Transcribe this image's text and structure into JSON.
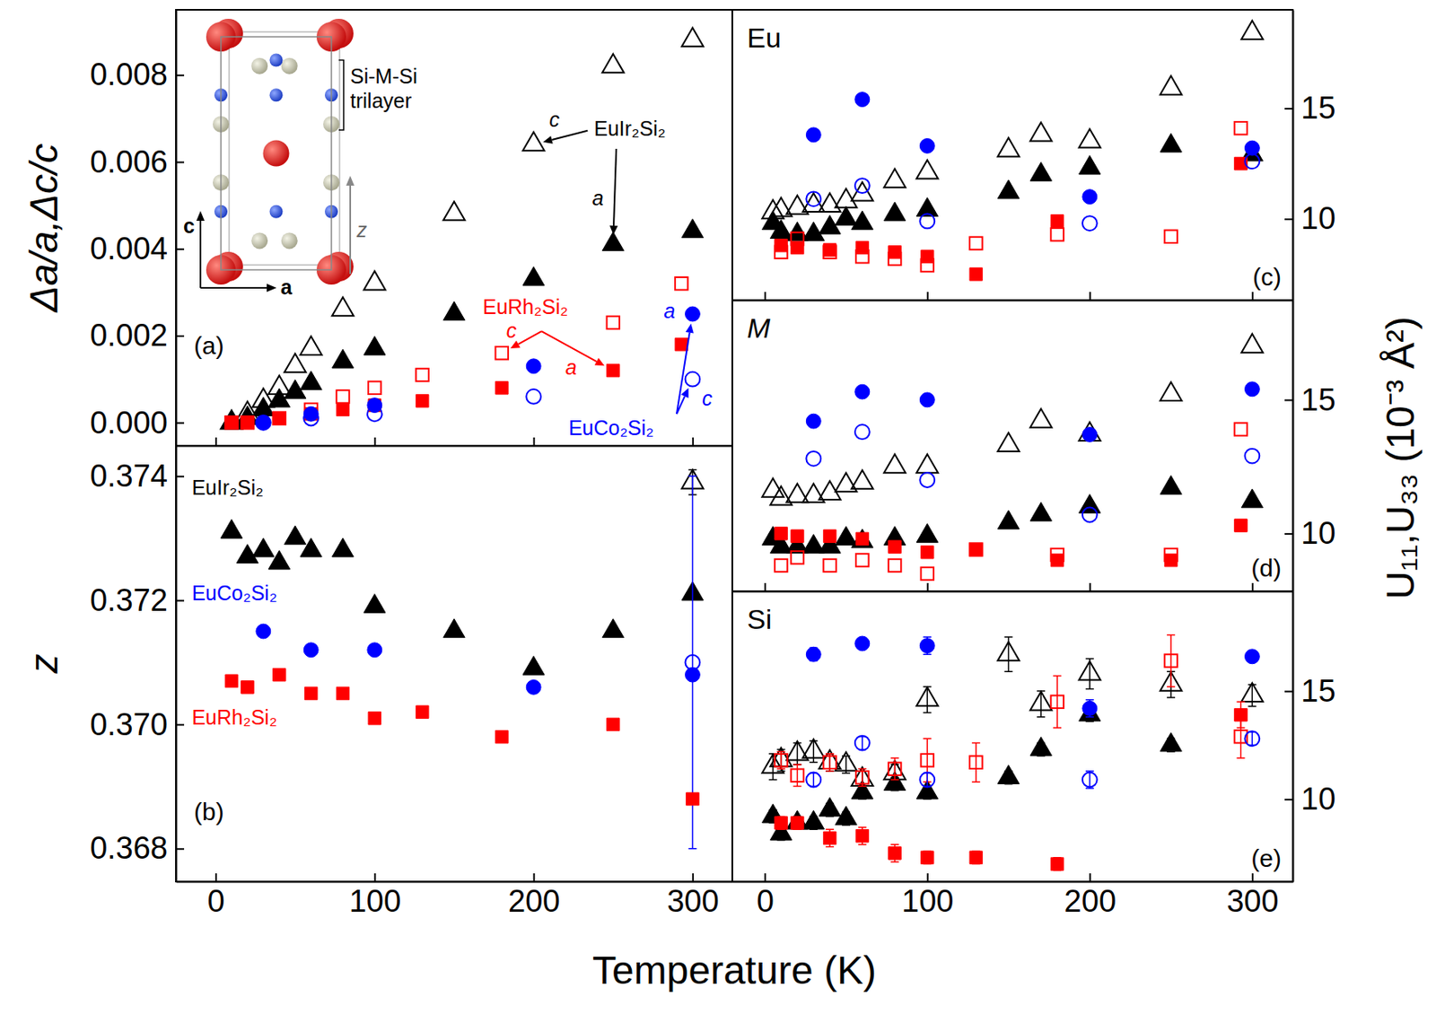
{
  "chart_data": [
    {
      "type": "scatter",
      "panel": "(a)",
      "y_label": "Δa/a,Δc/c",
      "xlim": [
        -25,
        325
      ],
      "xticks": [
        0,
        100,
        200,
        300
      ],
      "ylim": [
        -0.00053,
        0.0095
      ],
      "yticks": [
        {
          "value": 0,
          "label": "0.000"
        },
        0.002,
        0.004,
        0.006,
        0.008
      ],
      "tick_labels": "y",
      "series": [
        {
          "color": "#000000",
          "marker": "triangle-open",
          "x": [
            10,
            20,
            30,
            40,
            50,
            60,
            80,
            100,
            150,
            200,
            250,
            300
          ],
          "values": [
            0,
            0.0002,
            0.0005,
            0.0008,
            0.0013,
            0.0017,
            0.0026,
            0.0032,
            0.0048,
            0.0064,
            0.0082,
            0.0088
          ]
        },
        {
          "color": "#000000",
          "marker": "triangle",
          "x": [
            10,
            20,
            30,
            40,
            50,
            60,
            80,
            100,
            150,
            200,
            250,
            300
          ],
          "values": [
            0,
            0.0001,
            0.0003,
            0.0005,
            0.0007,
            0.0009,
            0.0014,
            0.0017,
            0.0025,
            0.0033,
            0.0041,
            0.0044
          ]
        },
        {
          "color": "#ff0000",
          "marker": "square-open",
          "x": [
            10,
            20,
            40,
            60,
            80,
            100,
            130,
            180,
            250,
            293
          ],
          "values": [
            0,
            0,
            0.0001,
            0.0003,
            0.0006,
            0.0008,
            0.0011,
            0.0016,
            0.0023,
            0.0032
          ]
        },
        {
          "color": "#ff0000",
          "marker": "square",
          "x": [
            10,
            20,
            40,
            60,
            80,
            100,
            130,
            180,
            250,
            293
          ],
          "values": [
            0,
            0,
            0.0001,
            0.0002,
            0.0003,
            0.0004,
            0.0005,
            0.0008,
            0.0012,
            0.0018
          ]
        },
        {
          "color": "#0000ff",
          "marker": "circle",
          "x": [
            30,
            60,
            100,
            200,
            300
          ],
          "values": [
            0,
            0.0002,
            0.0004,
            0.0013,
            0.0025
          ]
        },
        {
          "color": "#0000ff",
          "marker": "circle-open",
          "x": [
            30,
            60,
            100,
            200,
            300
          ],
          "values": [
            0,
            0.0001,
            0.0002,
            0.0006,
            0.001
          ]
        }
      ],
      "annotations": [
        {
          "text": "EuIr₂Si₂",
          "color": "#000000"
        },
        {
          "text": "c",
          "color": "#000000"
        },
        {
          "text": "a",
          "color": "#000000"
        },
        {
          "text": "EuRh₂Si₂",
          "color": "#ff0000"
        },
        {
          "text": "c",
          "color": "#ff0000"
        },
        {
          "text": "a",
          "color": "#ff0000"
        },
        {
          "text": "EuCo₂Si₂",
          "color": "#0000ff"
        },
        {
          "text": "a",
          "color": "#0000ff"
        },
        {
          "text": "c",
          "color": "#0000ff"
        }
      ],
      "inset": {
        "labels": [
          "Si-M-Si",
          "trilayer",
          "c",
          "a",
          "z"
        ]
      }
    },
    {
      "type": "scatter",
      "panel": "(b)",
      "y_label": "z",
      "x_label": "Temperature (K)",
      "xlim": [
        -25,
        325
      ],
      "xticks": [
        0,
        100,
        200,
        300
      ],
      "ylim": [
        0.36747,
        0.37449
      ],
      "yticks": [
        0.368,
        {
          "value": 0.37,
          "label": "0.370"
        },
        0.372,
        0.374
      ],
      "series": [
        {
          "color": "#000000",
          "marker": "triangle",
          "x": [
            10,
            20,
            30,
            40,
            50,
            60,
            80,
            100,
            150,
            200,
            250,
            300
          ],
          "values": [
            0.3731,
            0.3727,
            0.3728,
            0.3726,
            0.373,
            0.3728,
            0.3728,
            0.3719,
            0.3715,
            0.3709,
            0.3715,
            0.3721
          ]
        },
        {
          "color": "#000000",
          "marker": "triangle-open",
          "x": [
            300
          ],
          "values": [
            0.3739
          ],
          "errors": [
            0.0002
          ]
        },
        {
          "color": "#0000ff",
          "marker": "circle",
          "x": [
            30,
            60,
            100,
            200,
            300
          ],
          "values": [
            0.3715,
            0.3712,
            0.3712,
            0.3706,
            0.3708
          ]
        },
        {
          "color": "#0000ff",
          "marker": "circle-open",
          "x": [
            300
          ],
          "values": [
            0.371
          ],
          "errors": [
            0.003
          ]
        },
        {
          "color": "#ff0000",
          "marker": "square",
          "x": [
            10,
            20,
            40,
            60,
            80,
            100,
            130,
            180,
            250,
            300
          ],
          "values": [
            0.3707,
            0.3706,
            0.3708,
            0.3705,
            0.3705,
            0.3701,
            0.3702,
            0.3698,
            0.37,
            0.3688
          ]
        }
      ],
      "annotations": [
        {
          "text": "EuIr₂Si₂",
          "color": "#000000"
        },
        {
          "text": "EuCo₂Si₂",
          "color": "#0000ff"
        },
        {
          "text": "EuRh₂Si₂",
          "color": "#ff0000"
        }
      ]
    },
    {
      "type": "scatter",
      "panel": "(c)",
      "title": "Eu",
      "xlim": [
        -20,
        325
      ],
      "xticks": [
        0,
        100,
        200,
        300
      ],
      "ylim": [
        6.33,
        19.45
      ],
      "yticks": [
        10,
        15
      ],
      "tick_labels": "y",
      "series": [
        {
          "color": "#000000",
          "marker": "triangle-open",
          "x": [
            5,
            10,
            20,
            30,
            40,
            50,
            60,
            80,
            100,
            150,
            170,
            200,
            250,
            300
          ],
          "values": [
            10.3,
            10.4,
            10.5,
            10.6,
            10.6,
            10.8,
            11.1,
            11.7,
            12.1,
            13.1,
            13.8,
            13.5,
            15.9,
            18.4
          ]
        },
        {
          "color": "#000000",
          "marker": "triangle",
          "x": [
            5,
            10,
            20,
            30,
            40,
            50,
            60,
            80,
            100,
            150,
            170,
            200,
            250,
            300
          ],
          "values": [
            9.8,
            9.4,
            9.3,
            9.3,
            9.6,
            10.0,
            9.8,
            10.2,
            10.4,
            11.2,
            12.0,
            12.3,
            13.3,
            12.9
          ]
        },
        {
          "color": "#ff0000",
          "marker": "square",
          "x": [
            10,
            20,
            40,
            60,
            80,
            100,
            130,
            180,
            293
          ],
          "values": [
            8.8,
            8.7,
            8.6,
            8.7,
            8.5,
            8.3,
            7.5,
            9.9,
            12.5
          ]
        },
        {
          "color": "#ff0000",
          "marker": "square-open",
          "x": [
            10,
            20,
            40,
            60,
            80,
            100,
            130,
            180,
            250,
            293
          ],
          "values": [
            8.5,
            9.1,
            8.5,
            8.3,
            8.2,
            7.9,
            8.9,
            9.3,
            9.2,
            14.1
          ]
        },
        {
          "color": "#0000ff",
          "marker": "circle",
          "x": [
            30,
            60,
            100,
            200,
            300
          ],
          "values": [
            13.8,
            15.4,
            13.3,
            11.0,
            13.2
          ]
        },
        {
          "color": "#0000ff",
          "marker": "circle-open",
          "x": [
            30,
            60,
            100,
            200,
            300
          ],
          "values": [
            10.9,
            11.5,
            9.9,
            9.8,
            12.6
          ]
        }
      ]
    },
    {
      "type": "scatter",
      "panel": "(d)",
      "title": "M",
      "y_label": "U₁₁,U₃₃ (10⁻³ Å²)",
      "xlim": [
        -20,
        325
      ],
      "xticks": [
        0,
        100,
        200,
        300
      ],
      "ylim": [
        7.84,
        18.73
      ],
      "yticks": [
        10,
        15
      ],
      "tick_labels": "y",
      "series": [
        {
          "color": "#000000",
          "marker": "triangle-open",
          "x": [
            5,
            10,
            20,
            30,
            40,
            50,
            60,
            80,
            100,
            150,
            170,
            200,
            250,
            300
          ],
          "values": [
            11.6,
            11.3,
            11.4,
            11.4,
            11.5,
            11.8,
            11.9,
            12.5,
            12.5,
            13.3,
            14.2,
            13.7,
            15.2,
            17.0
          ]
        },
        {
          "color": "#000000",
          "marker": "triangle",
          "x": [
            5,
            10,
            20,
            30,
            40,
            50,
            60,
            80,
            100,
            150,
            170,
            200,
            250,
            300
          ],
          "values": [
            9.8,
            9.5,
            9.5,
            9.5,
            9.5,
            9.8,
            9.7,
            9.8,
            9.9,
            10.4,
            10.7,
            11.0,
            11.7,
            11.2
          ]
        },
        {
          "color": "#ff0000",
          "marker": "square",
          "x": [
            10,
            20,
            40,
            60,
            80,
            100,
            130,
            180,
            250,
            293
          ],
          "values": [
            10.0,
            9.9,
            9.9,
            9.8,
            9.5,
            9.3,
            9.4,
            9.0,
            9.0,
            10.3
          ]
        },
        {
          "color": "#ff0000",
          "marker": "square-open",
          "x": [
            10,
            20,
            40,
            60,
            80,
            100,
            130,
            180,
            250,
            293
          ],
          "values": [
            8.8,
            9.1,
            8.8,
            9.0,
            8.8,
            8.5,
            9.4,
            9.2,
            9.2,
            13.9
          ]
        },
        {
          "color": "#0000ff",
          "marker": "circle",
          "x": [
            30,
            60,
            100,
            200,
            300
          ],
          "values": [
            14.2,
            15.3,
            15.0,
            13.7,
            15.4
          ]
        },
        {
          "color": "#0000ff",
          "marker": "circle-open",
          "x": [
            30,
            60,
            100,
            200,
            300
          ],
          "values": [
            12.8,
            13.8,
            12.0,
            10.7,
            12.9
          ]
        }
      ]
    },
    {
      "type": "scatter",
      "panel": "(e)",
      "title": "Si",
      "xlim": [
        -20,
        325
      ],
      "xticks": [
        0,
        100,
        200,
        300
      ],
      "ylim": [
        6.19,
        19.62
      ],
      "yticks": [
        10,
        15
      ],
      "series": [
        {
          "color": "#000000",
          "marker": "triangle-open",
          "x": [
            5,
            10,
            20,
            30,
            40,
            50,
            60,
            80,
            100,
            150,
            170,
            200,
            250,
            300
          ],
          "values": [
            11.5,
            11.8,
            12.1,
            12.2,
            11.7,
            11.6,
            10.9,
            11.2,
            14.6,
            16.7,
            14.4,
            15.8,
            15.3,
            14.8
          ],
          "errors": [
            0.6,
            0.5,
            0.5,
            0.5,
            0.4,
            0.4,
            0.4,
            0.4,
            0.6,
            0.8,
            0.6,
            0.7,
            0.6,
            0.5
          ]
        },
        {
          "color": "#000000",
          "marker": "triangle",
          "x": [
            5,
            10,
            20,
            30,
            40,
            50,
            60,
            80,
            100,
            150,
            170,
            200,
            250
          ],
          "values": [
            9.2,
            8.4,
            8.9,
            8.9,
            9.5,
            9.1,
            10.3,
            10.7,
            10.3,
            11.0,
            12.3,
            13.9,
            12.5
          ],
          "errors": [
            0.3,
            0.3,
            0.3,
            0.3,
            0.3,
            0.3,
            0.3,
            0.3,
            0.3,
            0.3,
            0.3,
            0.3,
            0.3
          ]
        },
        {
          "color": "#ff0000",
          "marker": "square",
          "x": [
            10,
            20,
            40,
            60,
            80,
            100,
            130,
            180,
            293
          ],
          "values": [
            8.9,
            8.9,
            8.2,
            8.3,
            7.5,
            7.3,
            7.3,
            7.0,
            13.9
          ],
          "errors": [
            0.3,
            0.3,
            0.4,
            0.4,
            0.4,
            0.3,
            0.3,
            0.3,
            0.6
          ]
        },
        {
          "color": "#ff0000",
          "marker": "square-open",
          "x": [
            10,
            20,
            40,
            60,
            80,
            100,
            130,
            180,
            250,
            293
          ],
          "values": [
            11.8,
            11.1,
            11.7,
            11.0,
            11.4,
            11.8,
            11.7,
            14.5,
            16.4,
            12.9
          ],
          "errors": [
            0.4,
            0.5,
            0.4,
            0.4,
            0.5,
            1.0,
            0.9,
            1.2,
            1.2,
            1.0
          ]
        },
        {
          "color": "#0000ff",
          "marker": "circle",
          "x": [
            30,
            60,
            100,
            200,
            300
          ],
          "values": [
            16.7,
            17.2,
            17.1,
            14.2,
            16.6
          ],
          "errors": [
            0.3,
            0.2,
            0.4,
            0.4,
            0.2
          ]
        },
        {
          "color": "#0000ff",
          "marker": "circle-open",
          "x": [
            30,
            60,
            100,
            200,
            300
          ],
          "values": [
            10.9,
            12.6,
            10.9,
            10.9,
            12.8
          ],
          "errors": [
            0.3,
            0.3,
            0.3,
            0.4,
            0.3
          ]
        }
      ]
    }
  ]
}
